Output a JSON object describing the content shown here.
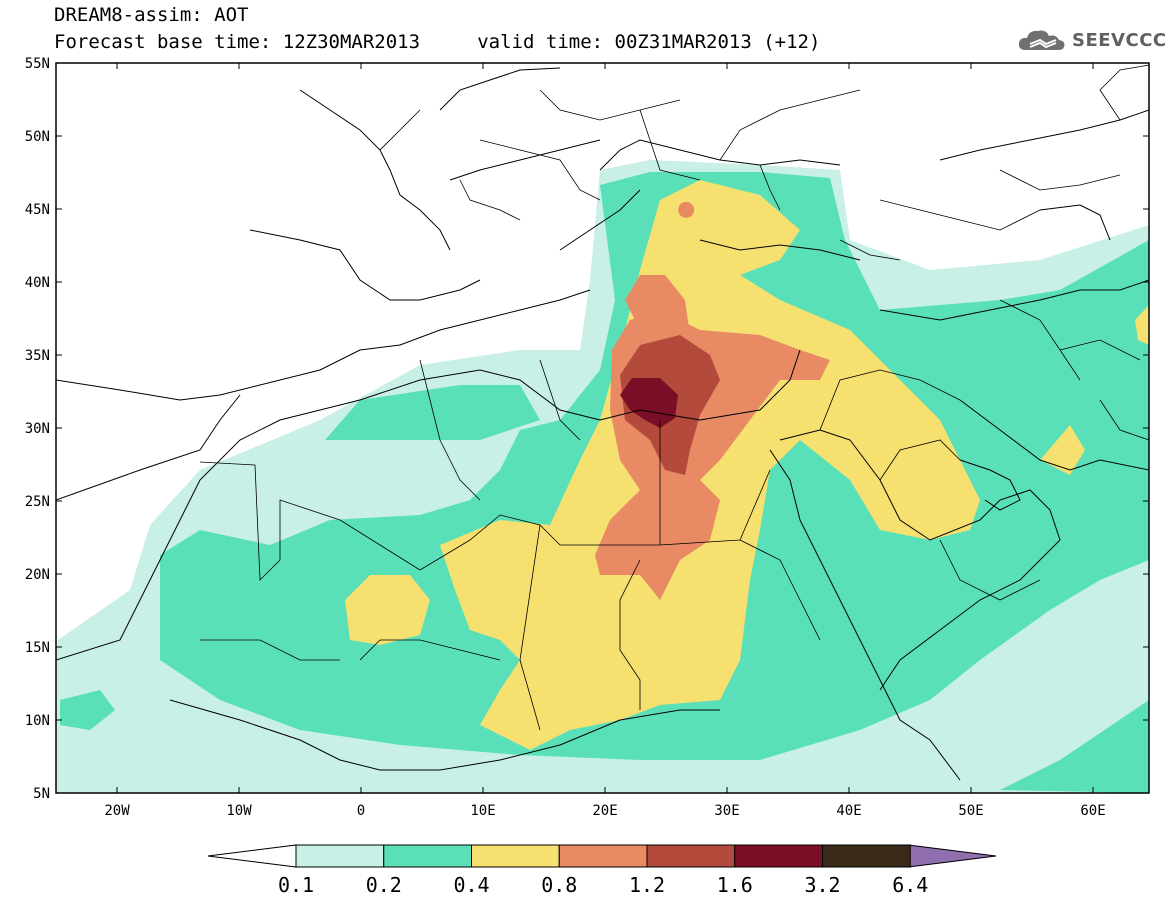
{
  "header": {
    "title_line1": "DREAM8-assim: AOT",
    "title_line2": "Forecast base time: 12Z30MAR2013     valid time: 00Z31MAR2013 (+12)",
    "logo_text": "SEEVCCC"
  },
  "axes": {
    "lat_ticks": [
      "55N",
      "50N",
      "45N",
      "40N",
      "35N",
      "30N",
      "25N",
      "20N",
      "15N",
      "10N",
      "5N"
    ],
    "lon_ticks": [
      "20W",
      "10W",
      "0",
      "10E",
      "20E",
      "30E",
      "40E",
      "50E",
      "60E"
    ]
  },
  "colorbar": {
    "levels": [
      "0.1",
      "0.2",
      "0.4",
      "0.8",
      "1.2",
      "1.6",
      "3.2",
      "6.4"
    ],
    "colors": [
      "#ffffff",
      "#c8f0e6",
      "#5ae0b8",
      "#f5e070",
      "#e88a64",
      "#b34a3c",
      "#7a0e26",
      "#3b2a18",
      "#8f6fb0"
    ]
  },
  "map_colors": {
    "c1": "#c8f0e6",
    "c2": "#5ae0b8",
    "c3": "#f5e070",
    "c4": "#e88a64",
    "c5": "#b34a3c",
    "c6": "#7a0e26"
  }
}
